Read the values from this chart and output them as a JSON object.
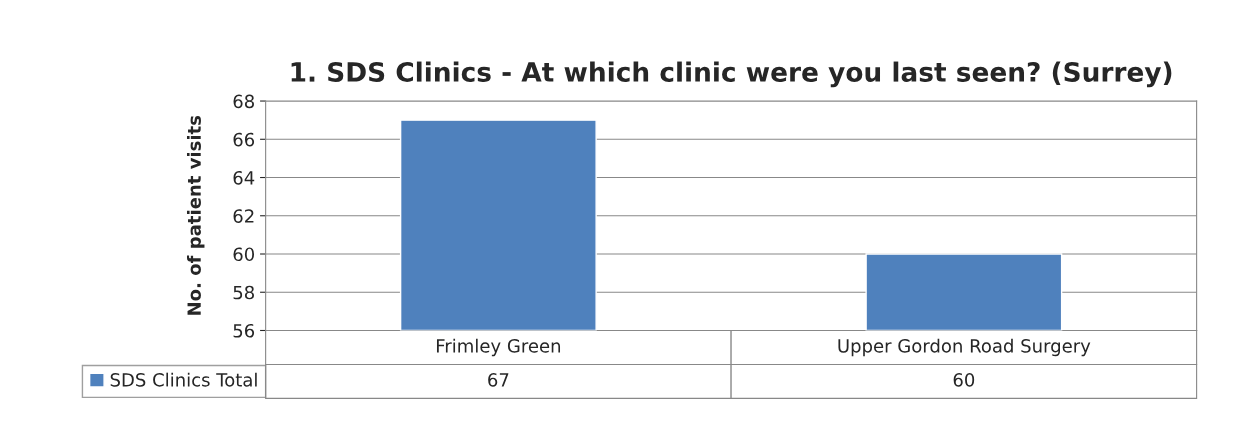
{
  "chart_data": {
    "type": "bar",
    "title": "1. SDS Clinics - At which clinic were you last seen? (Surrey)",
    "ylabel": "No. of patient visits",
    "categories": [
      "Frimley Green",
      "Upper Gordon Road Surgery"
    ],
    "series": [
      {
        "name": "SDS Clinics Total",
        "color": "#4f81bd",
        "values": [
          67,
          60
        ]
      }
    ],
    "ylim": [
      56,
      68
    ],
    "yticks": [
      56,
      58,
      60,
      62,
      64,
      66,
      68
    ],
    "grid": "y",
    "data_labels": true,
    "legend": "bottom"
  }
}
